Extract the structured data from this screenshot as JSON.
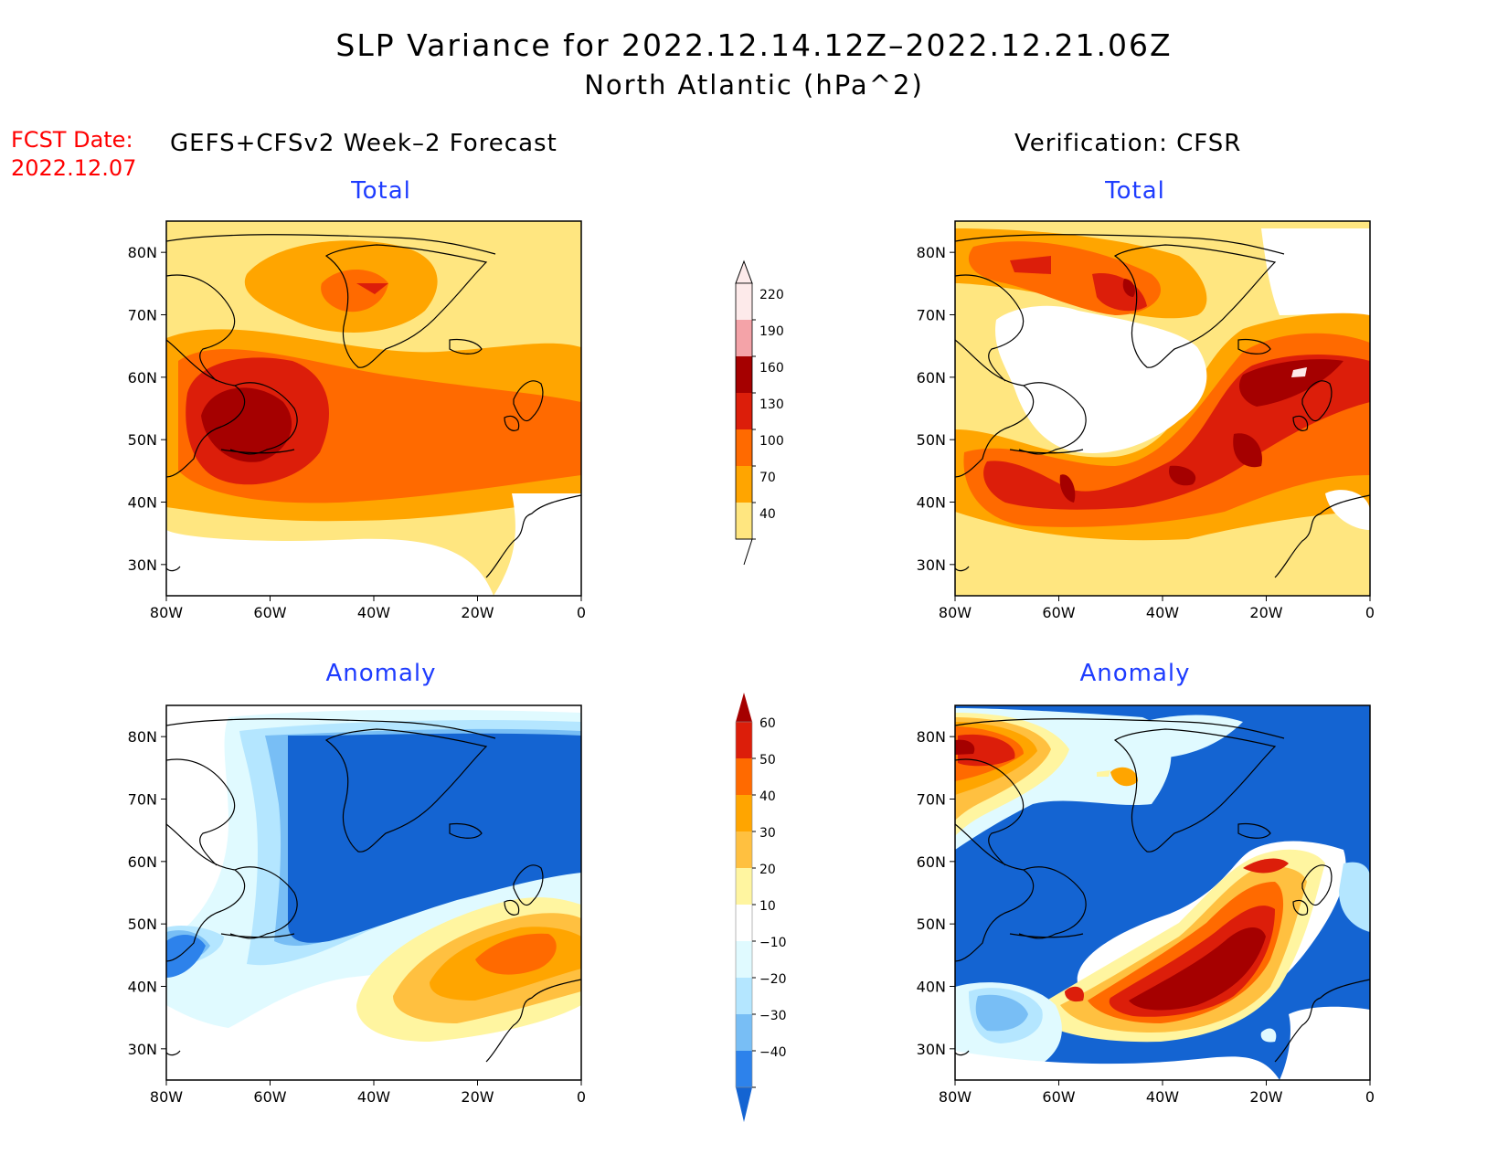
{
  "title": "SLP Variance for 2022.12.14.12Z–2022.12.21.06Z",
  "subtitle": "North Atlantic (hPa^2)",
  "fcst_label": "FCST Date:",
  "fcst_date": "2022.12.07",
  "left_header": "GEFS+CFSv2 Week–2 Forecast",
  "right_header": "Verification: CFSR",
  "panels": {
    "total_left": "Total",
    "total_right": "Total",
    "anom_left": "Anomaly",
    "anom_right": "Anomaly"
  },
  "lat_labels": [
    "80N",
    "70N",
    "60N",
    "50N",
    "40N",
    "30N"
  ],
  "lon_labels": [
    "80W",
    "60W",
    "40W",
    "20W",
    "0"
  ],
  "colorbar_total": {
    "levels": [
      "220",
      "190",
      "160",
      "130",
      "100",
      "70",
      "40"
    ],
    "colors": [
      "#fdeaea",
      "#f4a3a8",
      "#a50000",
      "#dc1e0a",
      "#ff6a00",
      "#ffa500",
      "#ffe680"
    ]
  },
  "colorbar_anom": {
    "levels": [
      "60",
      "50",
      "40",
      "30",
      "20",
      "10",
      "−10",
      "−20",
      "−30",
      "−40"
    ],
    "colors": [
      "#a50000",
      "#dc1e0a",
      "#ff6a00",
      "#ffa500",
      "#ffc040",
      "#fff5a0",
      "#ffffff",
      "#e0faff",
      "#b4e6ff",
      "#78bef5",
      "#2d82eb",
      "#1464d2"
    ]
  },
  "chart_data": {
    "type": "heatmap",
    "title": "SLP Variance for 2022.12.14.12Z–2022.12.21.06Z",
    "subtitle": "North Atlantic (hPa^2)",
    "xlim": [
      "80W",
      "0"
    ],
    "ylim": [
      "25N",
      "85N"
    ],
    "total_contour_levels": [
      40,
      70,
      100,
      130,
      160,
      190,
      220
    ],
    "anomaly_contour_levels": [
      -40,
      -30,
      -20,
      -10,
      10,
      20,
      30,
      40,
      50,
      60
    ],
    "panels": [
      "GEFS+CFSv2 Week-2 Forecast Total",
      "Verification: CFSR Total",
      "GEFS+CFSv2 Week-2 Forecast Anomaly",
      "Verification: CFSR Anomaly"
    ]
  }
}
